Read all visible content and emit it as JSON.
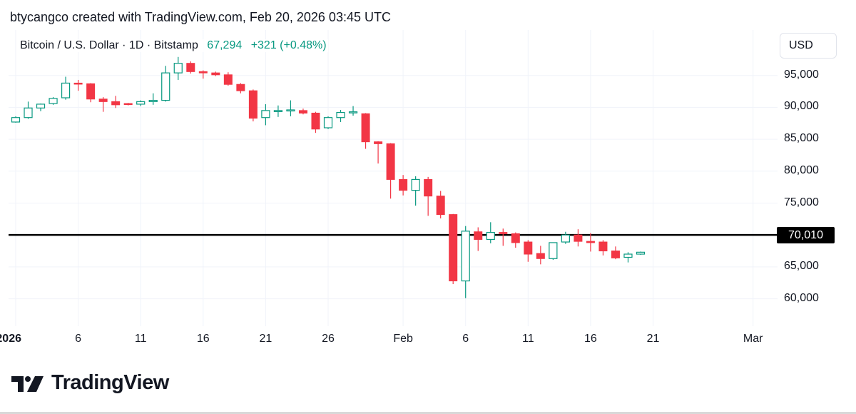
{
  "caption": "btycangco created with TradingView.com, Feb 20, 2026 03:45 UTC",
  "legend": {
    "symbol": "Bitcoin / U.S. Dollar · 1D · Bitstamp",
    "last": "67,294",
    "change": "+321 (+0.48%)"
  },
  "currency": "USD",
  "brand": "TradingView",
  "colors": {
    "up": "#089981",
    "down": "#f23645",
    "grid": "#f0f3fa",
    "level": "#000000"
  },
  "chart_data": {
    "type": "candlestick",
    "title": "Bitcoin / U.S. Dollar · 1D · Bitstamp",
    "ylim": [
      55000,
      101000
    ],
    "y_ticks": [
      60000,
      65000,
      70000,
      75000,
      80000,
      85000,
      90000,
      95000
    ],
    "y_tick_labels": [
      "60,000",
      "65,000",
      "70,000",
      "75,000",
      "80,000",
      "85,000",
      "90,000",
      "95,000"
    ],
    "x_tick_labels": [
      "2026",
      "6",
      "11",
      "16",
      "21",
      "26",
      "Feb",
      "6",
      "11",
      "16",
      "21",
      "Mar"
    ],
    "horizontal_line": {
      "value": 70010,
      "label": "70,010"
    },
    "candles": [
      {
        "date": "Jan 1",
        "o": 87700,
        "h": 88600,
        "l": 87600,
        "c": 88400
      },
      {
        "date": "Jan 2",
        "o": 88400,
        "h": 90900,
        "l": 88200,
        "c": 89900
      },
      {
        "date": "Jan 3",
        "o": 89900,
        "h": 90600,
        "l": 89400,
        "c": 90500
      },
      {
        "date": "Jan 4",
        "o": 90600,
        "h": 91600,
        "l": 90400,
        "c": 91400
      },
      {
        "date": "Jan 5",
        "o": 91500,
        "h": 94800,
        "l": 91200,
        "c": 93800
      },
      {
        "date": "Jan 6",
        "o": 93800,
        "h": 94300,
        "l": 92600,
        "c": 93700
      },
      {
        "date": "Jan 7",
        "o": 93700,
        "h": 93800,
        "l": 90800,
        "c": 91300
      },
      {
        "date": "Jan 8",
        "o": 91300,
        "h": 91600,
        "l": 89300,
        "c": 90900
      },
      {
        "date": "Jan 9",
        "o": 90900,
        "h": 91800,
        "l": 89900,
        "c": 90400
      },
      {
        "date": "Jan 10",
        "o": 90600,
        "h": 90700,
        "l": 90300,
        "c": 90500
      },
      {
        "date": "Jan 11",
        "o": 90500,
        "h": 91100,
        "l": 90200,
        "c": 90900
      },
      {
        "date": "Jan 12",
        "o": 90900,
        "h": 92200,
        "l": 90400,
        "c": 91100
      },
      {
        "date": "Jan 13",
        "o": 91100,
        "h": 96500,
        "l": 90900,
        "c": 95400
      },
      {
        "date": "Jan 14",
        "o": 95400,
        "h": 97900,
        "l": 94300,
        "c": 96900
      },
      {
        "date": "Jan 15",
        "o": 96900,
        "h": 97200,
        "l": 95300,
        "c": 95600
      },
      {
        "date": "Jan 16",
        "o": 95600,
        "h": 95800,
        "l": 94500,
        "c": 95400
      },
      {
        "date": "Jan 17",
        "o": 95400,
        "h": 95600,
        "l": 94900,
        "c": 95100
      },
      {
        "date": "Jan 18",
        "o": 95100,
        "h": 95500,
        "l": 93400,
        "c": 93600
      },
      {
        "date": "Jan 19",
        "o": 93600,
        "h": 93800,
        "l": 92200,
        "c": 92600
      },
      {
        "date": "Jan 20",
        "o": 92600,
        "h": 92800,
        "l": 87800,
        "c": 88300
      },
      {
        "date": "Jan 21",
        "o": 88400,
        "h": 90500,
        "l": 87200,
        "c": 89500
      },
      {
        "date": "Jan 22",
        "o": 89500,
        "h": 90300,
        "l": 88500,
        "c": 89500
      },
      {
        "date": "Jan 23",
        "o": 89500,
        "h": 91100,
        "l": 88600,
        "c": 89600
      },
      {
        "date": "Jan 24",
        "o": 89500,
        "h": 89800,
        "l": 88900,
        "c": 89100
      },
      {
        "date": "Jan 25",
        "o": 89100,
        "h": 89300,
        "l": 86000,
        "c": 86600
      },
      {
        "date": "Jan 26",
        "o": 86800,
        "h": 88600,
        "l": 86600,
        "c": 88400
      },
      {
        "date": "Jan 27",
        "o": 88400,
        "h": 89600,
        "l": 87700,
        "c": 89200
      },
      {
        "date": "Jan 28",
        "o": 89200,
        "h": 90200,
        "l": 88700,
        "c": 89300
      },
      {
        "date": "Jan 29",
        "o": 89000,
        "h": 89100,
        "l": 83500,
        "c": 84600
      },
      {
        "date": "Jan 30",
        "o": 84600,
        "h": 84700,
        "l": 81200,
        "c": 84300
      },
      {
        "date": "Jan 31",
        "o": 84300,
        "h": 84400,
        "l": 75700,
        "c": 78700
      },
      {
        "date": "Feb 1",
        "o": 78700,
        "h": 79400,
        "l": 76200,
        "c": 77000
      },
      {
        "date": "Feb 2",
        "o": 77000,
        "h": 79200,
        "l": 74600,
        "c": 78700
      },
      {
        "date": "Feb 3",
        "o": 78700,
        "h": 79100,
        "l": 73000,
        "c": 76100
      },
      {
        "date": "Feb 4",
        "o": 76100,
        "h": 76900,
        "l": 72600,
        "c": 73200
      },
      {
        "date": "Feb 5",
        "o": 73200,
        "h": 73300,
        "l": 62300,
        "c": 62800
      },
      {
        "date": "Feb 6",
        "o": 62800,
        "h": 71400,
        "l": 60100,
        "c": 70600
      },
      {
        "date": "Feb 7",
        "o": 70500,
        "h": 71200,
        "l": 67500,
        "c": 69300
      },
      {
        "date": "Feb 8",
        "o": 69300,
        "h": 72000,
        "l": 68700,
        "c": 70400
      },
      {
        "date": "Feb 9",
        "o": 70400,
        "h": 71000,
        "l": 68300,
        "c": 70200
      },
      {
        "date": "Feb 10",
        "o": 70200,
        "h": 70400,
        "l": 68000,
        "c": 68800
      },
      {
        "date": "Feb 11",
        "o": 68900,
        "h": 69200,
        "l": 65800,
        "c": 67000
      },
      {
        "date": "Feb 12",
        "o": 67100,
        "h": 68300,
        "l": 65400,
        "c": 66300
      },
      {
        "date": "Feb 13",
        "o": 66300,
        "h": 68800,
        "l": 66100,
        "c": 68800
      },
      {
        "date": "Feb 14",
        "o": 68900,
        "h": 70500,
        "l": 68600,
        "c": 70000
      },
      {
        "date": "Feb 15",
        "o": 70000,
        "h": 70900,
        "l": 68200,
        "c": 69000
      },
      {
        "date": "Feb 16",
        "o": 69000,
        "h": 70300,
        "l": 67400,
        "c": 68800
      },
      {
        "date": "Feb 17",
        "o": 68900,
        "h": 69200,
        "l": 66800,
        "c": 67500
      },
      {
        "date": "Feb 18",
        "o": 67500,
        "h": 68200,
        "l": 66200,
        "c": 66400
      },
      {
        "date": "Feb 19",
        "o": 66500,
        "h": 67300,
        "l": 65700,
        "c": 67000
      },
      {
        "date": "Feb 20",
        "o": 67000,
        "h": 67400,
        "l": 66900,
        "c": 67300
      }
    ]
  }
}
